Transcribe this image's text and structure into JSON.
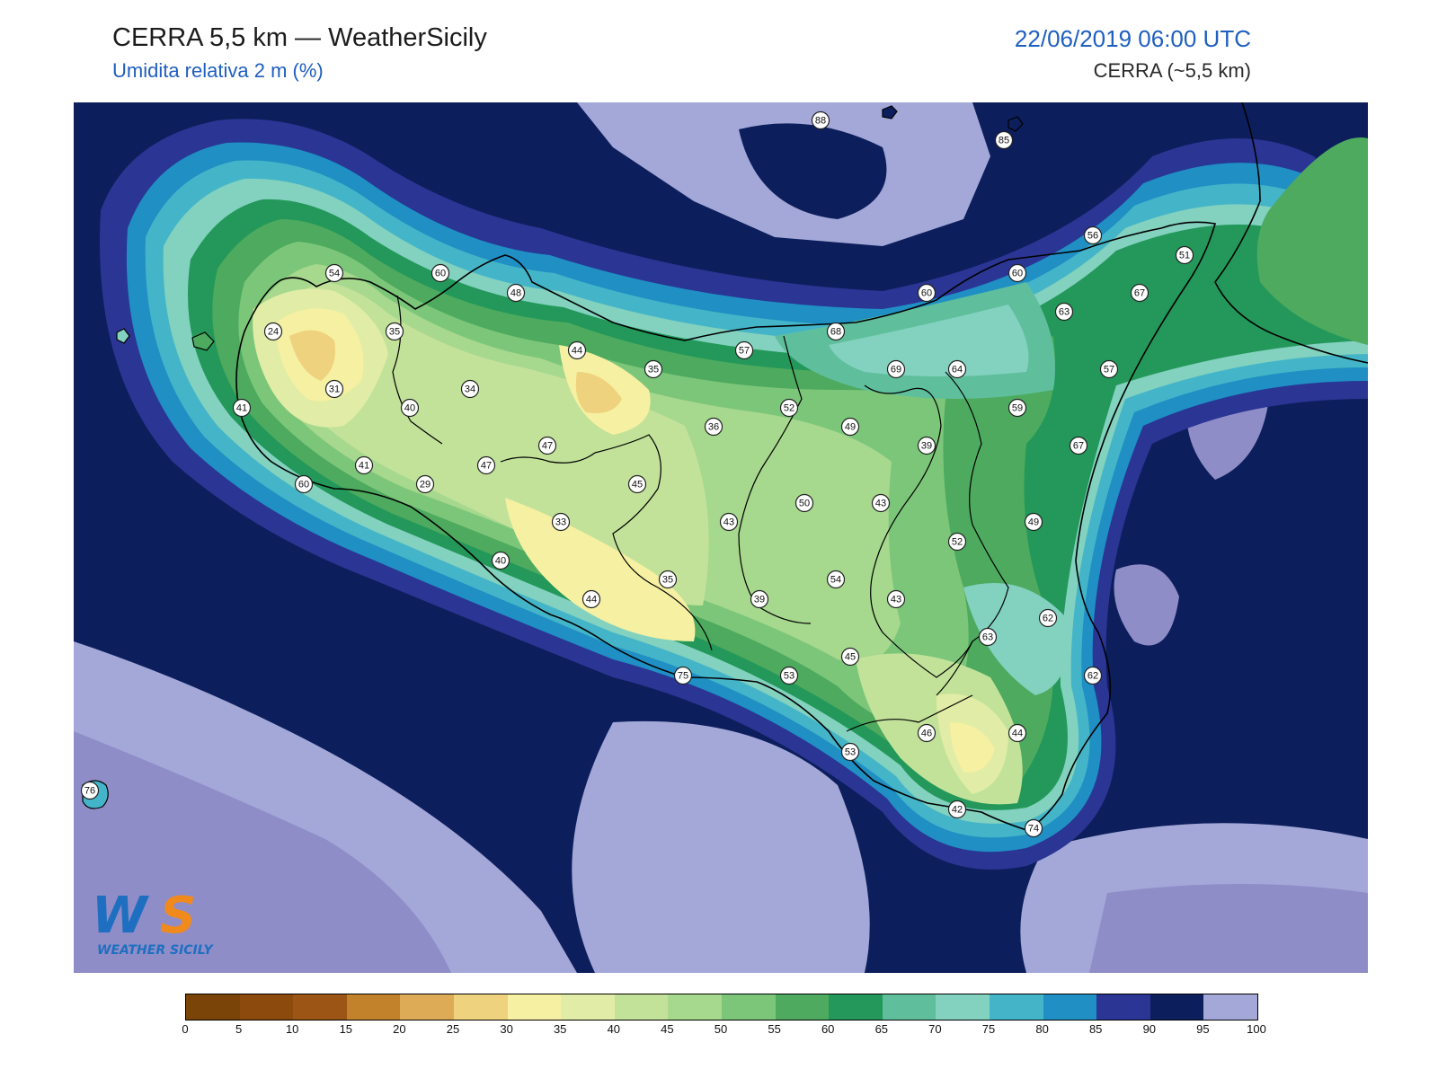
{
  "header": {
    "title": "CERRA 5,5 km — WeatherSicily",
    "subtitle": "Umidita relativa 2 m (%)",
    "datetime": "22/06/2019 06:00 UTC",
    "model": "CERRA (~5,5 km)"
  },
  "legend": {
    "ticks": [
      "0",
      "5",
      "10",
      "15",
      "20",
      "25",
      "30",
      "35",
      "40",
      "45",
      "50",
      "55",
      "60",
      "65",
      "70",
      "75",
      "80",
      "85",
      "90",
      "95",
      "100"
    ],
    "colors": [
      "#7a4308",
      "#8c4a0c",
      "#9c5514",
      "#c2822c",
      "#ddab55",
      "#efd27d",
      "#f6f0a2",
      "#e1eda6",
      "#c2e29a",
      "#a6d88e",
      "#7cc67a",
      "#4daa5e",
      "#23985a",
      "#5fbf9c",
      "#83d1bf",
      "#44b5c8",
      "#1f8fc4",
      "#2a3594",
      "#0d1e5c",
      "#a3a8d8",
      "#8f8dc8"
    ]
  },
  "stations": [
    {
      "label": "88"
    },
    {
      "label": "85"
    },
    {
      "label": "56"
    },
    {
      "label": "51"
    },
    {
      "label": "54"
    },
    {
      "label": "60"
    },
    {
      "label": "48"
    },
    {
      "label": "60"
    },
    {
      "label": "60"
    },
    {
      "label": "67"
    },
    {
      "label": "63"
    },
    {
      "label": "24"
    },
    {
      "label": "35"
    },
    {
      "label": "68"
    },
    {
      "label": "44"
    },
    {
      "label": "57"
    },
    {
      "label": "35"
    },
    {
      "label": "69"
    },
    {
      "label": "64"
    },
    {
      "label": "57"
    },
    {
      "label": "31"
    },
    {
      "label": "34"
    },
    {
      "label": "41"
    },
    {
      "label": "40"
    },
    {
      "label": "52"
    },
    {
      "label": "49"
    },
    {
      "label": "59"
    },
    {
      "label": "36"
    },
    {
      "label": "47"
    },
    {
      "label": "39"
    },
    {
      "label": "67"
    },
    {
      "label": "41"
    },
    {
      "label": "47"
    },
    {
      "label": "60"
    },
    {
      "label": "29"
    },
    {
      "label": "45"
    },
    {
      "label": "50"
    },
    {
      "label": "43"
    },
    {
      "label": "33"
    },
    {
      "label": "43"
    },
    {
      "label": "49"
    },
    {
      "label": "52"
    },
    {
      "label": "40"
    },
    {
      "label": "35"
    },
    {
      "label": "54"
    },
    {
      "label": "44"
    },
    {
      "label": "39"
    },
    {
      "label": "43"
    },
    {
      "label": "62"
    },
    {
      "label": "63"
    },
    {
      "label": "45"
    },
    {
      "label": "75"
    },
    {
      "label": "53"
    },
    {
      "label": "62"
    },
    {
      "label": "46"
    },
    {
      "label": "44"
    },
    {
      "label": "53"
    },
    {
      "label": "76"
    },
    {
      "label": "42"
    },
    {
      "label": "74"
    }
  ],
  "logo": {
    "text": "WS",
    "caption": "WEATHER SICILY"
  }
}
